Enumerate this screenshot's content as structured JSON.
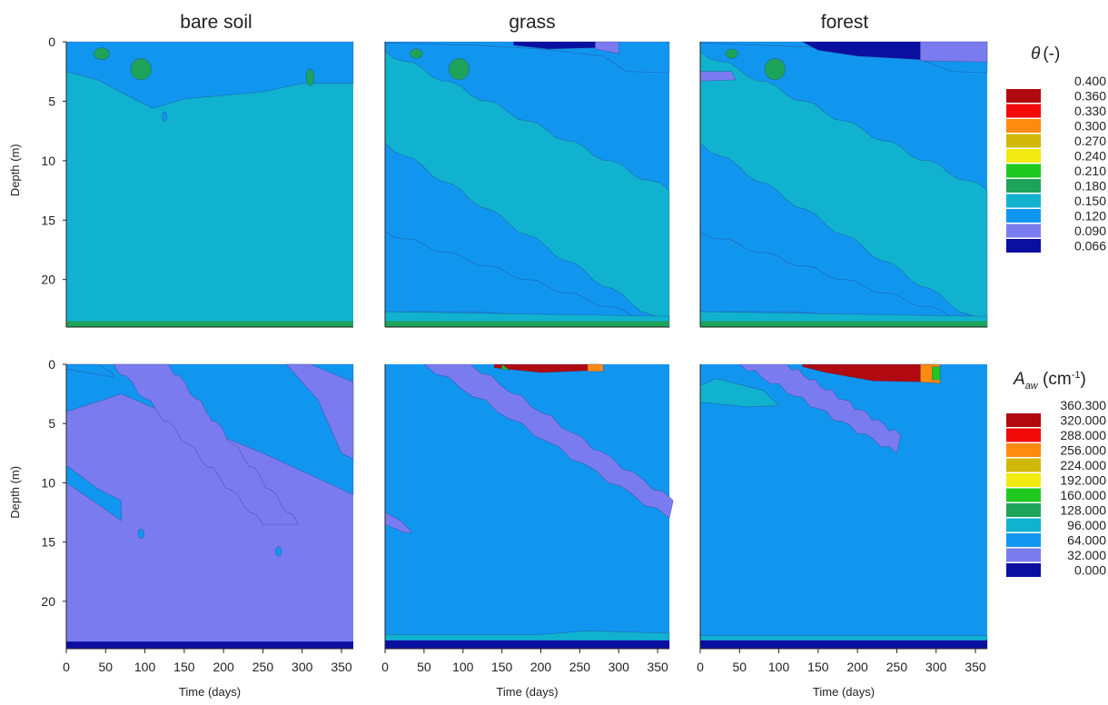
{
  "figure": {
    "column_titles": [
      "bare soil",
      "grass",
      "forest"
    ]
  },
  "colors": {
    "c066": "#0a0fa0",
    "c090": "#7b7bf0",
    "c120": "#1196f0",
    "c150": "#10b2d0",
    "c180": "#1ea35a",
    "c210": "#1ec81e",
    "c240": "#f2ea10",
    "c270": "#d1b80a",
    "c300": "#ff8a10",
    "c330": "#f20a0a",
    "c360": "#b00a10"
  },
  "legend_theta": {
    "title_symbol": "θ",
    "title_unit": "(-)",
    "levels": [
      "0.400",
      "0.360",
      "0.330",
      "0.300",
      "0.270",
      "0.240",
      "0.210",
      "0.180",
      "0.150",
      "0.120",
      "0.090",
      "0.066"
    ],
    "swatch_colors": [
      "#b00a10",
      "#f20a0a",
      "#ff8a10",
      "#d1b80a",
      "#f2ea10",
      "#1ec81e",
      "#1ea35a",
      "#10b2d0",
      "#1196f0",
      "#7b7bf0",
      "#0a0fa0"
    ]
  },
  "legend_aaw": {
    "title_symbol": "A",
    "title_subscript": "aw",
    "title_unit_open": " (cm",
    "title_unit_exp": "-1",
    "title_unit_close": ")",
    "levels": [
      "360.300",
      "320.000",
      "288.000",
      "256.000",
      "224.000",
      "192.000",
      "160.000",
      "128.000",
      "96.000",
      "64.000",
      "32.000",
      "0.000"
    ],
    "swatch_colors": [
      "#b00a10",
      "#f20a0a",
      "#ff8a10",
      "#d1b80a",
      "#f2ea10",
      "#1ec81e",
      "#1ea35a",
      "#10b2d0",
      "#1196f0",
      "#7b7bf0",
      "#0a0fa0"
    ]
  },
  "chart_data": [
    {
      "type": "heatmap",
      "panel": "bare soil",
      "variable": "θ (-)",
      "xlabel": "",
      "ylabel": "Depth (m)",
      "xlim": [
        0,
        365
      ],
      "ylim": [
        0,
        24
      ],
      "y_ticks": [
        0,
        5,
        10,
        15,
        20
      ],
      "x_ticks": [],
      "background_class": "0.150",
      "regions": [
        {
          "class": "0.120",
          "desc": "near-surface wet zone 0–4 m, all year"
        },
        {
          "class": "0.180",
          "desc": "small patches near 1–3 m around days 50–120 and 300"
        }
      ]
    },
    {
      "type": "heatmap",
      "panel": "grass",
      "variable": "θ (-)",
      "xlabel": "",
      "ylabel": "",
      "xlim": [
        0,
        365
      ],
      "ylim": [
        0,
        24
      ],
      "y_ticks": [],
      "x_ticks": [],
      "background_class": "0.120",
      "regions": [
        {
          "class": "0.066",
          "desc": "thin dry layer at surface, days 150–250"
        },
        {
          "class": "0.150",
          "desc": "diagonal band descending from 2 m to 13 m and from 9 m to 24 m"
        },
        {
          "class": "0.180",
          "desc": "patch near 2 m around days 50–120"
        }
      ]
    },
    {
      "type": "heatmap",
      "panel": "forest",
      "variable": "θ (-)",
      "xlabel": "",
      "ylabel": "",
      "xlim": [
        0,
        365
      ],
      "ylim": [
        0,
        24
      ],
      "y_ticks": [],
      "x_ticks": [],
      "background_class": "0.120",
      "regions": [
        {
          "class": "0.066",
          "desc": "dry layer 0–1.5 m, days 130–280"
        },
        {
          "class": "0.090",
          "desc": "thin layer near 2–3 m"
        },
        {
          "class": "0.150",
          "desc": "diagonal bands descending with time"
        },
        {
          "class": "0.180",
          "desc": "small patch near 2 m around days 80–110"
        }
      ]
    },
    {
      "type": "heatmap",
      "panel": "bare soil",
      "variable": "A_aw (cm-1)",
      "xlabel": "Time (days)",
      "ylabel": "Depth (m)",
      "xlim": [
        0,
        365
      ],
      "ylim": [
        0,
        24
      ],
      "y_ticks": [
        0,
        5,
        10,
        15,
        20
      ],
      "x_ticks": [
        0,
        50,
        100,
        150,
        200,
        250,
        300,
        350
      ],
      "background_class": "32.000",
      "regions": [
        {
          "class": "64.000",
          "desc": "upper wedge and diagonal wavy bands of higher values"
        }
      ]
    },
    {
      "type": "heatmap",
      "panel": "grass",
      "variable": "A_aw (cm-1)",
      "xlabel": "Time (days)",
      "ylabel": "",
      "xlim": [
        0,
        365
      ],
      "ylim": [
        0,
        24
      ],
      "y_ticks": [],
      "x_ticks": [
        0,
        50,
        100,
        150,
        200,
        250,
        300,
        350
      ],
      "background_class": "64.000",
      "regions": [
        {
          "class": "32.000",
          "desc": "diagonal band from 0 m at day 50 to 13 m at day 365"
        },
        {
          "class": "360.300",
          "desc": "thin hot spot at surface, days 130–280"
        }
      ]
    },
    {
      "type": "heatmap",
      "panel": "forest",
      "variable": "A_aw (cm-1)",
      "xlabel": "Time (days)",
      "ylabel": "",
      "xlim": [
        0,
        365
      ],
      "ylim": [
        0,
        24
      ],
      "y_ticks": [],
      "x_ticks": [
        0,
        50,
        100,
        150,
        200,
        250,
        300,
        350
      ],
      "background_class": "64.000",
      "regions": [
        {
          "class": "32.000",
          "desc": "diagonal band from 0 m at day 50 to 7 m at day 250"
        },
        {
          "class": "96.000",
          "desc": "surface layer 0–3 m"
        },
        {
          "class": "360.300",
          "desc": "hot spot at surface, days 130–300"
        }
      ]
    }
  ]
}
